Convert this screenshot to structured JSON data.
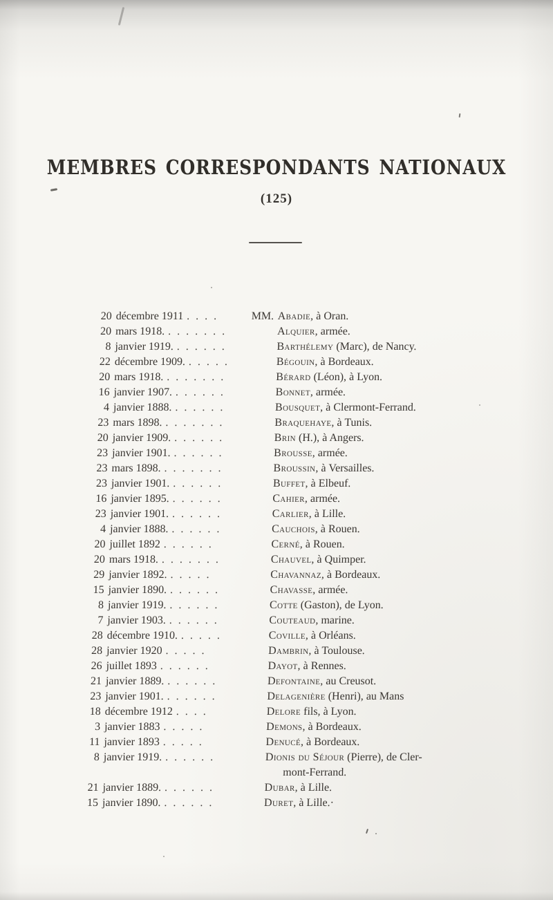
{
  "header": {
    "title": "MEMBRES CORRESPONDANTS NATIONAUX",
    "count": "(125)"
  },
  "colors": {
    "paper": "#f7f6f2",
    "ink": "#3a3632",
    "edge_shading": "#8a8987"
  },
  "list": {
    "rows": [
      {
        "day": "20",
        "date": "décembre 1911",
        "dots": ". . . .",
        "prefix": "MM.",
        "name": "Abadie",
        "rest": ", à Oran."
      },
      {
        "day": "20",
        "date": "mars 1918.",
        "dots": ". . . . . . .",
        "name": "Alquier",
        "rest": ", armée."
      },
      {
        "day": "8",
        "date": "janvier 1919.",
        "dots": ". . . . . .",
        "name": "Barthélemy",
        "rest": " (Marc), de Nancy."
      },
      {
        "day": "22",
        "date": "décembre 1909.",
        "dots": ". . . . .",
        "name": "Bégouin",
        "rest": ", à Bordeaux."
      },
      {
        "day": "20",
        "date": "mars 1918.",
        "dots": ". . . . . . .",
        "name": "Bérard",
        "rest": " (Léon), à Lyon."
      },
      {
        "day": "16",
        "date": "janvier 1907.",
        "dots": ". . . . . .",
        "name": "Bonnet",
        "rest": ", armée."
      },
      {
        "day": "4",
        "date": "janvier 1888.",
        "dots": ". . . . . .",
        "name": "Bousquet",
        "rest": ", à Clermont-Ferrand."
      },
      {
        "day": "23",
        "date": "mars 1898.",
        "dots": ". . . . . . .",
        "name": "Braquehaye",
        "rest": ", à Tunis."
      },
      {
        "day": "20",
        "date": "janvier 1909.",
        "dots": ". . . . . .",
        "name": "Brin",
        "rest": " (H.), à Angers."
      },
      {
        "day": "23",
        "date": "janvier 1901.",
        "dots": ". . . . . .",
        "name": "Brousse",
        "rest": ", armée."
      },
      {
        "day": "23",
        "date": "mars 1898.",
        "dots": ". . . . . . .",
        "name": "Broussin",
        "rest": ", à Versailles."
      },
      {
        "day": "23",
        "date": "janvier 1901.",
        "dots": ". . . . . .",
        "name": "Buffet",
        "rest": ", à Elbeuf."
      },
      {
        "day": "16",
        "date": "janvier 1895.",
        "dots": ". . . . . .",
        "name": "Cahier",
        "rest": ", armée."
      },
      {
        "day": "23",
        "date": "janvier 1901.",
        "dots": ". . . . . .",
        "name": "Carlier",
        "rest": ", à Lille."
      },
      {
        "day": "4",
        "date": "janvier 1888.",
        "dots": ". . . . . .",
        "name": "Cauchois",
        "rest": ", à Rouen."
      },
      {
        "day": "20",
        "date": "juillet 1892",
        "dots": ". . . . . .",
        "name": "Cerné",
        "rest": ", à Rouen."
      },
      {
        "day": "20",
        "date": "mars 1918.",
        "dots": ". . . . . . .",
        "name": "Chauvel",
        "rest": ", à Quimper."
      },
      {
        "day": "29",
        "date": "janvier 1892.",
        "dots": ". . . . .",
        "name": "Chavannaz",
        "rest": ", à Bordeaux."
      },
      {
        "day": "15",
        "date": "janvier 1890.",
        "dots": ". . . . . .",
        "name": "Chavasse",
        "rest": ", armée."
      },
      {
        "day": "8",
        "date": "janvier 1919.",
        "dots": ". . . . . .",
        "name": "Cotte",
        "rest": " (Gaston), de Lyon."
      },
      {
        "day": "7",
        "date": "janvier 1903.",
        "dots": ". . . . . .",
        "name": "Couteaud",
        "rest": ", marine."
      },
      {
        "day": "28",
        "date": "décembre 1910.",
        "dots": ". . . . .",
        "name": "Coville",
        "rest": ", à Orléans."
      },
      {
        "day": "28",
        "date": "janvier 1920",
        "dots": ". . . . .",
        "name": "Dambrin",
        "rest": ", à Toulouse."
      },
      {
        "day": "26",
        "date": "juillet 1893",
        "dots": ". . . . . .",
        "name": "Dayot",
        "rest": ", à Rennes."
      },
      {
        "day": "21",
        "date": "janvier 1889.",
        "dots": ". . . . . .",
        "name": "Defontaine",
        "rest": ", au Creusot."
      },
      {
        "day": "23",
        "date": "janvier 1901.",
        "dots": ". . . . . .",
        "name": "Delagenière",
        "rest": " (Henri), au Mans"
      },
      {
        "day": "18",
        "date": "décembre 1912",
        "dots": ". . . .",
        "name": "Delore",
        "rest": " fils, à Lyon."
      },
      {
        "day": "3",
        "date": "janvier 1883",
        "dots": ". . . . .",
        "name": "Demons",
        "rest": ", à Bordeaux."
      },
      {
        "day": "11",
        "date": "janvier 1893",
        "dots": ". . . . .",
        "name": "Denucé",
        "rest": ", à Bordeaux."
      },
      {
        "day": "8",
        "date": "janvier 1919.",
        "dots": ". . . . . .",
        "name": "Dionis du Séjour",
        "rest": " (Pierre), de Cler-",
        "cont": "mont-Ferrand."
      },
      {
        "day": "21",
        "date": "janvier 1889.",
        "dots": ". . . . . .",
        "name": "Dubar",
        "rest": ", à Lille."
      },
      {
        "day": "15",
        "date": "janvier 1890.",
        "dots": ". . . . . .",
        "name": "Duret",
        "rest": ", à Lille.·"
      }
    ]
  }
}
